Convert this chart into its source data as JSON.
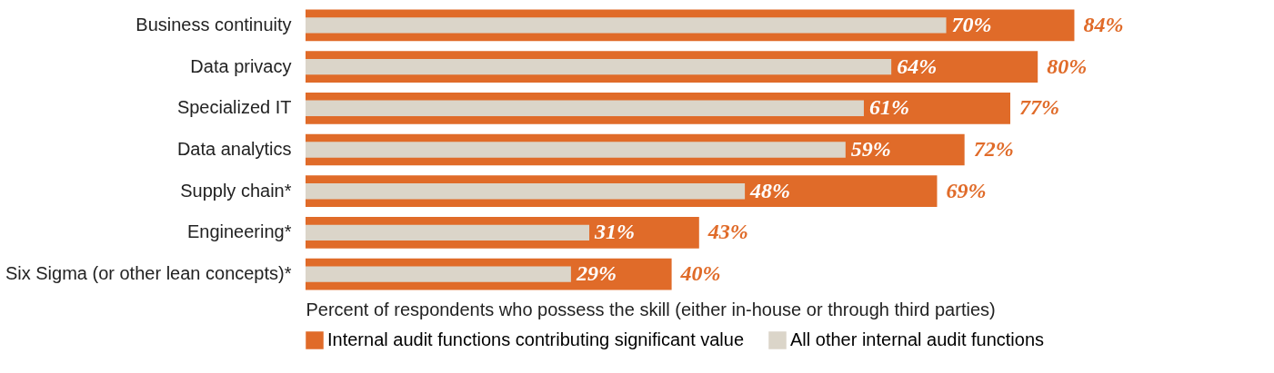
{
  "chart_data": {
    "type": "bar",
    "orientation": "horizontal",
    "xlabel": "Percent of respondents who possess the skill (either in-house or through third parties)",
    "categories": [
      "Business continuity",
      "Data privacy",
      "Specialized IT",
      "Data analytics",
      "Supply chain*",
      "Engineering*",
      "Six Sigma (or other lean concepts)*"
    ],
    "series": [
      {
        "name": "Internal audit functions contributing significant value",
        "color": "#e06b29",
        "values": [
          84,
          80,
          77,
          72,
          69,
          43,
          40
        ],
        "value_labels": [
          "84%",
          "80%",
          "77%",
          "72%",
          "69%",
          "43%",
          "40%"
        ]
      },
      {
        "name": "All other internal audit functions",
        "color": "#dbd5c9",
        "values": [
          70,
          64,
          61,
          59,
          48,
          31,
          29
        ],
        "value_labels": [
          "70%",
          "64%",
          "61%",
          "59%",
          "48%",
          "31%",
          "29%"
        ]
      }
    ],
    "legend": "bottom"
  }
}
